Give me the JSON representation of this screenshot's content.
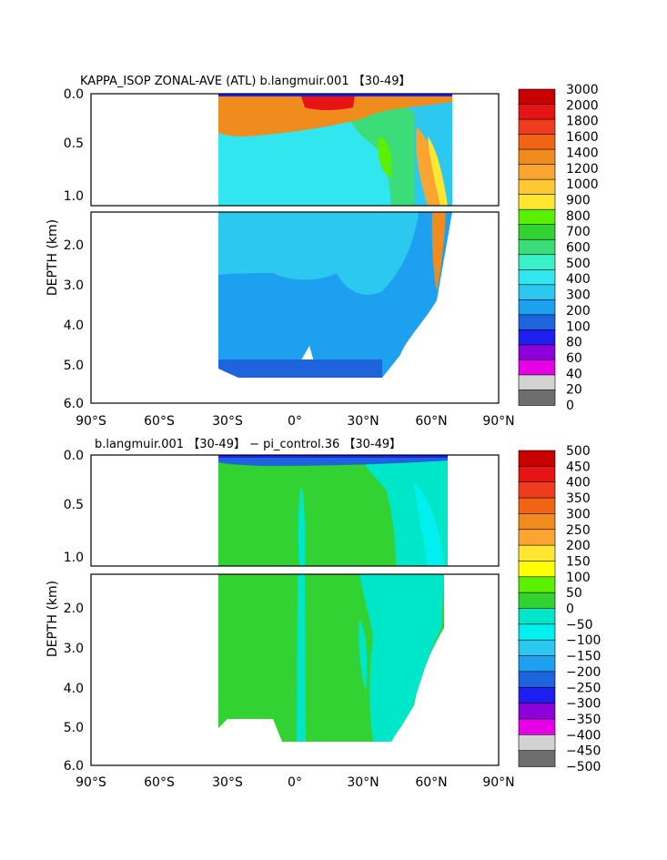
{
  "chart_data": [
    {
      "type": "heatmap",
      "title": "KAPPA_ISOP ZONAL-AVE (ATL) b.langmuir.001 【30-49】",
      "ylabel": "DEPTH (km)",
      "x_ticks": [
        "90°S",
        "60°S",
        "30°S",
        "0°",
        "30°N",
        "60°N",
        "90°N"
      ],
      "y_ticks_upper": [
        "0.0",
        "0.5",
        "1.0"
      ],
      "y_ticks_lower": [
        "2.0",
        "3.0",
        "4.0",
        "5.0",
        "6.0"
      ],
      "colorbar_labels": [
        "3000",
        "2000",
        "1800",
        "1600",
        "1400",
        "1200",
        "1000",
        "900",
        "800",
        "700",
        "600",
        "500",
        "400",
        "300",
        "200",
        "100",
        "80",
        "60",
        "40",
        "20",
        "0"
      ],
      "colors": [
        "#c80000",
        "#e61414",
        "#f03c1e",
        "#f06414",
        "#f08c1e",
        "#faa532",
        "#ffc832",
        "#ffe632",
        "#5af000",
        "#32d232",
        "#3cdc78",
        "#3cf0c8",
        "#32e6f0",
        "#2dc8f0",
        "#1ea0f0",
        "#1e64dc",
        "#1e1ef0",
        "#8c00dc",
        "#e600e6",
        "#d2d2d2",
        "#6e6e6e"
      ]
    },
    {
      "type": "heatmap",
      "title": "b.langmuir.001 【30-49】 − pi_control.36 【30-49】",
      "ylabel": "DEPTH (km)",
      "x_ticks": [
        "90°S",
        "60°S",
        "30°S",
        "0°",
        "30°N",
        "60°N",
        "90°N"
      ],
      "y_ticks_upper": [
        "0.0",
        "0.5",
        "1.0"
      ],
      "y_ticks_lower": [
        "2.0",
        "3.0",
        "4.0",
        "5.0",
        "6.0"
      ],
      "colorbar_labels": [
        "500",
        "450",
        "400",
        "350",
        "300",
        "250",
        "200",
        "150",
        "100",
        "50",
        "0",
        "−50",
        "−100",
        "−150",
        "−200",
        "−250",
        "−300",
        "−350",
        "−400",
        "−450",
        "−500"
      ],
      "colors": [
        "#c80000",
        "#e61414",
        "#f03c1e",
        "#f06414",
        "#f08c1e",
        "#faa532",
        "#ffe632",
        "#ffff00",
        "#5af000",
        "#32d232",
        "#00e6c8",
        "#00f0f0",
        "#2dc8f0",
        "#1ea0f0",
        "#1e64dc",
        "#1e1ef0",
        "#8c00dc",
        "#e600e6",
        "#d2d2d2",
        "#6e6e6e"
      ]
    }
  ]
}
